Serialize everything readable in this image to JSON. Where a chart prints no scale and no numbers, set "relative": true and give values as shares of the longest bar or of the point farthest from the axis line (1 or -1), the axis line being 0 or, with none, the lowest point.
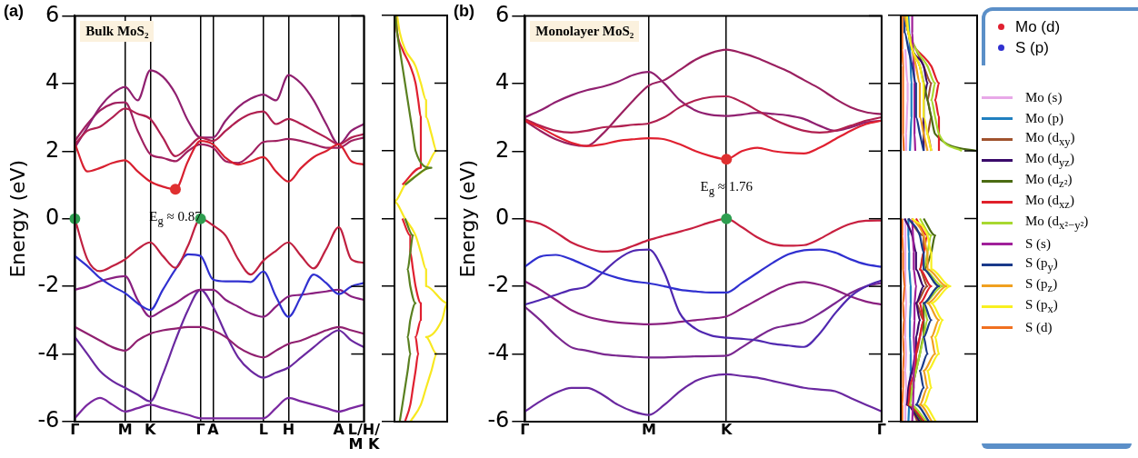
{
  "chart_data": [
    {
      "type": "line",
      "title": "(a)",
      "ylabel": "Energy (eV)",
      "ylim": [
        -6,
        6
      ],
      "yticks": [
        -6,
        -4,
        -2,
        0,
        2,
        4,
        6
      ],
      "grid": "x",
      "categories": [
        "Γ",
        null,
        null,
        null,
        "M",
        null,
        "K",
        null,
        null,
        null,
        "Γ",
        "A",
        null,
        null,
        null,
        "L",
        null,
        "H",
        null,
        null,
        null,
        "A",
        null,
        "L/H/\nM K"
      ],
      "annotations": [
        "Bulk MoS₂",
        {
          "text": "E$_{g}$ ≈ 0.87",
          "y": 0.87
        }
      ],
      "series": [
        {
          "color": "#c02040",
          "values": [
            0,
            -1.2,
            -1.55,
            -1.4,
            -1.2,
            -0.9,
            -0.7,
            -1.1,
            -1.45,
            -0.8,
            0,
            -0.2,
            -0.5,
            -1.2,
            -1.65,
            -1.24,
            -0.95,
            -0.7,
            -1.1,
            -1.47,
            -0.9,
            -0.25,
            -1.2,
            -1.3
          ]
        },
        {
          "color": "#3030d0",
          "values": [
            -1.1,
            -1.4,
            -1.75,
            -2.0,
            -2.2,
            -2.5,
            -2.7,
            -2.1,
            -1.5,
            -1.05,
            -1.1,
            -1.8,
            -1.85,
            -1.85,
            -1.87,
            -1.56,
            -2.3,
            -2.9,
            -2.3,
            -1.65,
            -1.9,
            -2.23,
            -2.0,
            -1.9
          ]
        },
        {
          "color": "#d82030",
          "values": [
            2.22,
            1.4,
            1.5,
            1.65,
            1.73,
            1.4,
            1.1,
            0.95,
            0.87,
            1.7,
            2.3,
            2.2,
            1.8,
            1.6,
            1.7,
            1.82,
            1.4,
            1.1,
            1.5,
            1.82,
            2.0,
            2.2,
            1.7,
            1.6
          ]
        },
        {
          "color": "#b02050",
          "values": [
            2.2,
            2.6,
            2.72,
            3.0,
            3.26,
            3.1,
            2.95,
            2.4,
            1.85,
            2.1,
            2.4,
            2.3,
            2.6,
            2.9,
            3.1,
            3.17,
            2.8,
            2.95,
            2.8,
            2.6,
            2.4,
            2.2,
            2.4,
            2.5
          ]
        },
        {
          "color": "#902070",
          "values": [
            2.1,
            2.7,
            3.3,
            3.7,
            3.9,
            3.5,
            4.39,
            4.2,
            3.7,
            2.9,
            2.4,
            2.4,
            2.9,
            3.3,
            3.55,
            3.67,
            3.5,
            4.25,
            4.0,
            3.5,
            2.8,
            2.2,
            2.6,
            2.8
          ]
        },
        {
          "color": "#a02060",
          "values": [
            2.3,
            2.8,
            3.2,
            3.4,
            3.44,
            2.6,
            1.91,
            1.8,
            1.7,
            2.0,
            2.2,
            2.1,
            1.7,
            1.65,
            1.9,
            2.27,
            2.3,
            2.36,
            2.3,
            2.2,
            2.1,
            2.1,
            2.3,
            2.4
          ]
        },
        {
          "color": "#8a2080",
          "values": [
            -2.1,
            -2.0,
            -1.85,
            -1.75,
            -1.7,
            -2.4,
            -2.9,
            -2.7,
            -2.5,
            -2.25,
            -2.1,
            -2.1,
            -2.4,
            -2.6,
            -2.8,
            -2.9,
            -2.6,
            -2.3,
            -2.25,
            -2.2,
            -2.15,
            -2.1,
            -2.3,
            -2.4
          ]
        },
        {
          "color": "#902070",
          "values": [
            -3.2,
            -3.4,
            -3.6,
            -3.8,
            -3.9,
            -3.6,
            -3.4,
            -3.3,
            -3.25,
            -3.2,
            -3.2,
            -3.3,
            -3.5,
            -3.8,
            -4.0,
            -4.1,
            -3.9,
            -3.7,
            -3.6,
            -3.45,
            -3.3,
            -3.2,
            -3.3,
            -3.4
          ]
        },
        {
          "color": "#6a28a0",
          "values": [
            -3.5,
            -4.0,
            -4.5,
            -4.8,
            -5.0,
            -5.2,
            -5.4,
            -4.6,
            -3.6,
            -2.7,
            -2.1,
            -2.6,
            -3.4,
            -4.1,
            -4.5,
            -4.7,
            -4.55,
            -4.4,
            -4.1,
            -3.8,
            -3.5,
            -3.3,
            -3.6,
            -3.8
          ]
        },
        {
          "color": "#7a28a0",
          "values": [
            -5.9,
            -5.5,
            -5.3,
            -5.5,
            -5.7,
            -5.6,
            -5.5,
            -5.6,
            -5.7,
            -5.8,
            -5.9,
            -5.9,
            -5.9,
            -5.9,
            -5.9,
            -5.9,
            -5.6,
            -5.3,
            -5.4,
            -5.5,
            -5.6,
            -5.7,
            -5.6,
            -5.5
          ]
        },
        {
          "type": "scatter",
          "color": "#2e9e50",
          "values": [
            0,
            null,
            null,
            null,
            null,
            null,
            null,
            null,
            null,
            null,
            0,
            null,
            null,
            null,
            null,
            null,
            null,
            null,
            null,
            null,
            null,
            null,
            null,
            null
          ]
        },
        {
          "type": "scatter",
          "color": "#e03030",
          "values": [
            null,
            null,
            null,
            null,
            null,
            null,
            null,
            null,
            0.87,
            null,
            null,
            null,
            null,
            null,
            null,
            null,
            null,
            null,
            null,
            null,
            null,
            null,
            null,
            null
          ]
        }
      ]
    },
    {
      "type": "line",
      "orientation": "horizontal",
      "relative": true,
      "ylim": [
        -6,
        6
      ],
      "yticks": [
        -6,
        -4,
        -2,
        0,
        2,
        4,
        6
      ],
      "tick_labels": false,
      "series": [
        {
          "color": "#f8e820",
          "x": [
            -6,
            -5.5,
            -5,
            -4.5,
            -4,
            -3.5,
            -3,
            -2.5,
            -2,
            -1.5,
            -1,
            -0.5,
            0,
            0.5,
            1,
            1.5,
            2,
            2.5,
            3,
            3.5,
            4,
            4.5,
            5,
            5.5,
            6
          ],
          "values": [
            0.3,
            0.5,
            0.6,
            0.7,
            0.8,
            0.6,
            0.9,
            1,
            0.6,
            0.6,
            0.5,
            0.4,
            0.2,
            0,
            0.2,
            0.6,
            0.8,
            0.7,
            0.6,
            0.6,
            0.5,
            0.4,
            0.2,
            0.1,
            0.05
          ]
        },
        {
          "color": "#e02030",
          "x": [
            -6,
            -5.5,
            -5,
            -4.5,
            -4,
            -3.5,
            -3,
            -2.5,
            -2,
            -1.5,
            -1,
            -0.5,
            0,
            0.5,
            1,
            1.5,
            2,
            2.5,
            3,
            3.5,
            4,
            4.5,
            5,
            5.5,
            6
          ],
          "values": [
            0.2,
            0.3,
            0.35,
            0.4,
            0.45,
            0.4,
            0.5,
            0.5,
            0.4,
            0.35,
            0.3,
            0.3,
            0.15,
            null,
            0.15,
            0.5,
            0.5,
            0.5,
            0.5,
            0.45,
            0.4,
            0.3,
            0.15,
            0.05,
            0.02
          ]
        },
        {
          "color": "#5a8020",
          "x": [
            -6,
            -5.5,
            -5,
            -4.5,
            -4,
            -3.5,
            -3,
            -2.5,
            -2,
            -1.5,
            -1,
            -0.5,
            0,
            0.5,
            1,
            1.5,
            2,
            2.5,
            3,
            3.5,
            4,
            4.5,
            5,
            5.5,
            6
          ],
          "values": [
            0.1,
            0.15,
            0.2,
            0.25,
            0.3,
            0.25,
            0.3,
            0.4,
            0.3,
            0.25,
            0.3,
            0.35,
            0.2,
            null,
            0.2,
            0.7,
            0.4,
            0.35,
            0.3,
            0.25,
            0.2,
            0.15,
            0.1,
            0.05,
            0.02
          ]
        }
      ]
    },
    {
      "type": "line",
      "title": "(b)",
      "ylabel": "Energy (eV)",
      "ylim": [
        -6,
        6
      ],
      "yticks": [
        -6,
        -4,
        -2,
        0,
        2,
        4,
        6
      ],
      "grid": "x",
      "legend": "right",
      "categories": [
        "Γ",
        null,
        null,
        null,
        null,
        null,
        null,
        null,
        "M",
        null,
        null,
        null,
        null,
        "K",
        null,
        null,
        null,
        null,
        null,
        null,
        null,
        null,
        null,
        "Γ"
      ],
      "annotations": [
        "Monolayer MoS₂",
        {
          "text": "E$_{g}$ ≈ 1.76",
          "x": "K",
          "y": 1.76
        }
      ],
      "series": [
        {
          "name": "Mo (d)",
          "color": "#e02030",
          "values": [
            2.9,
            2.7,
            2.45,
            2.25,
            2.15,
            2.2,
            2.3,
            2.35,
            2.38,
            2.35,
            2.2,
            2.0,
            1.85,
            1.76,
            2.0,
            2.1,
            2.0,
            1.95,
            1.93,
            2.1,
            2.35,
            2.6,
            2.8,
            2.9
          ]
        },
        {
          "color": "#b02050",
          "values": [
            2.95,
            2.75,
            2.6,
            2.55,
            2.6,
            2.7,
            2.73,
            2.78,
            2.82,
            3.0,
            3.3,
            3.5,
            3.6,
            3.62,
            3.45,
            3.2,
            2.95,
            2.75,
            2.6,
            2.55,
            2.6,
            2.75,
            2.9,
            3.0
          ]
        },
        {
          "color": "#902070",
          "values": [
            3.0,
            3.2,
            3.45,
            3.65,
            3.8,
            3.9,
            4.05,
            4.25,
            4.34,
            4.0,
            3.5,
            3.2,
            3.07,
            3.04,
            3.08,
            3.13,
            3.1,
            3.05,
            2.95,
            2.75,
            2.6,
            2.7,
            2.85,
            2.9
          ]
        },
        {
          "color": "#9a2060",
          "values": [
            2.9,
            2.6,
            2.35,
            2.2,
            2.15,
            2.5,
            3.0,
            3.5,
            3.94,
            4.1,
            4.4,
            4.7,
            4.9,
            5.0,
            4.9,
            4.75,
            4.55,
            4.35,
            4.1,
            3.85,
            3.55,
            3.3,
            3.15,
            3.09
          ]
        },
        {
          "color": "#c82040",
          "values": [
            -0.05,
            -0.15,
            -0.4,
            -0.7,
            -0.88,
            -0.97,
            -0.95,
            -0.8,
            -0.63,
            -0.5,
            -0.38,
            -0.25,
            -0.1,
            0,
            -0.25,
            -0.55,
            -0.75,
            -0.8,
            -0.78,
            -0.6,
            -0.35,
            -0.15,
            -0.06,
            -0.05
          ]
        },
        {
          "name": "S (p)",
          "color": "#3030d0",
          "values": [
            -1.42,
            -1.12,
            -1.07,
            -1.2,
            -1.4,
            -1.6,
            -1.75,
            -1.85,
            -1.91,
            -2.0,
            -2.1,
            -2.15,
            -2.18,
            -2.18,
            -1.9,
            -1.6,
            -1.3,
            -1.05,
            -0.93,
            -0.91,
            -1.0,
            -1.2,
            -1.35,
            -1.42
          ]
        },
        {
          "color": "#5028b0",
          "values": [
            -2.54,
            -2.4,
            -2.25,
            -2.1,
            -2.0,
            -1.6,
            -1.2,
            -0.95,
            -0.91,
            -1.6,
            -2.8,
            -3.25,
            -3.45,
            -3.52,
            -3.55,
            -3.6,
            -3.7,
            -3.75,
            -3.79,
            -3.4,
            -2.8,
            -2.3,
            -2.0,
            -1.82
          ]
        },
        {
          "color": "#8a2080",
          "values": [
            -1.85,
            -2.1,
            -2.4,
            -2.7,
            -2.89,
            -3.0,
            -3.07,
            -3.1,
            -3.12,
            -3.1,
            -3.05,
            -3.0,
            -2.95,
            -2.89,
            -2.65,
            -2.4,
            -2.15,
            -1.95,
            -1.87,
            -1.95,
            -2.1,
            -2.3,
            -2.45,
            -2.54
          ]
        },
        {
          "color": "#7a2890",
          "values": [
            -2.6,
            -3.0,
            -3.45,
            -3.8,
            -3.9,
            -4.0,
            -4.05,
            -4.08,
            -4.1,
            -4.1,
            -4.08,
            -4.07,
            -4.06,
            -4.05,
            -3.8,
            -3.5,
            -3.25,
            -3.15,
            -3.05,
            -2.8,
            -2.5,
            -2.2,
            -2.0,
            -1.9
          ]
        },
        {
          "color": "#6a28a0",
          "values": [
            -5.7,
            -5.4,
            -5.15,
            -5.0,
            -5.0,
            -5.2,
            -5.5,
            -5.7,
            -5.8,
            -5.5,
            -5.1,
            -4.8,
            -4.65,
            -4.6,
            -4.65,
            -4.7,
            -4.8,
            -4.9,
            -5.0,
            -5.05,
            -5.1,
            -5.3,
            -5.5,
            -5.7
          ]
        },
        {
          "type": "scatter",
          "color": "#2e9e50",
          "values": [
            null,
            null,
            null,
            null,
            null,
            null,
            null,
            null,
            null,
            null,
            null,
            null,
            null,
            0,
            null,
            null,
            null,
            null,
            null,
            null,
            null,
            null,
            null,
            null
          ]
        },
        {
          "type": "scatter",
          "color": "#e03030",
          "values": [
            null,
            null,
            null,
            null,
            null,
            null,
            null,
            null,
            null,
            null,
            null,
            null,
            null,
            1.76,
            null,
            null,
            null,
            null,
            null,
            null,
            null,
            null,
            null,
            null
          ]
        }
      ]
    },
    {
      "type": "line",
      "orientation": "horizontal",
      "relative": true,
      "ylim": [
        -6,
        6
      ],
      "yticks": [
        -6,
        -4,
        -2,
        0,
        2,
        4,
        6
      ],
      "tick_labels": false,
      "legend": "right",
      "series": [
        {
          "name": "Mo (s)",
          "color": "#e8a8e8",
          "x": [
            -6,
            -5.5,
            -5,
            -4.5,
            -4,
            -3.5,
            -3,
            -2.5,
            -2,
            -1.5,
            -1,
            -0.5,
            0,
            0.5,
            1,
            1.5,
            2,
            2.5,
            3,
            3.5,
            4,
            4.5,
            5
          ],
          "values": [
            0.06,
            0.06,
            0.07,
            0.06,
            0.07,
            0.06,
            0.06,
            0.07,
            0.06,
            0.06,
            0.06,
            0.06,
            0.06,
            null,
            null,
            null,
            0.07,
            0.07,
            0.08,
            0.09,
            0.09,
            0.07,
            0.06
          ]
        },
        {
          "name": "Mo (p)",
          "color": "#2080c0",
          "x": [
            -6,
            -5.5,
            -5,
            -4.5,
            -4,
            -3.5,
            -3,
            -2.5,
            -2,
            -1.5,
            -1,
            -0.5,
            0,
            0.5,
            1,
            1.5,
            2,
            2.5,
            3,
            3.5,
            4,
            4.5,
            5,
            5.5,
            6
          ],
          "values": [
            0.1,
            0.11,
            0.12,
            0.13,
            0.13,
            0.12,
            0.12,
            0.13,
            0.13,
            0.11,
            0.11,
            0.1,
            0.1,
            null,
            null,
            null,
            0.12,
            0.13,
            0.14,
            0.14,
            0.14,
            0.13,
            0.12,
            0.11,
            0.1
          ]
        },
        {
          "name": "Mo (d$_{xy}$)",
          "color": "#a0522d",
          "x": [
            -6,
            -5.5,
            -5,
            -4.5,
            -4,
            -3.5,
            -3,
            -2.5,
            -2,
            -1.5,
            -1,
            -0.5,
            0,
            0.5,
            1,
            1.5,
            2,
            2.5,
            3,
            3.5,
            4,
            4.5,
            5,
            5.5,
            6
          ],
          "values": [
            0.22,
            0.1,
            0.15,
            0.2,
            0.2,
            0.25,
            0.3,
            0.2,
            0.35,
            0.25,
            0.3,
            0.3,
            0.1,
            null,
            null,
            null,
            0.4,
            0.35,
            0.4,
            0.35,
            0.4,
            0.3,
            0.2,
            0.1,
            0.05
          ]
        },
        {
          "name": "Mo (d$_{yz}$)",
          "color": "#3a0a6a",
          "x": [
            -6,
            -5.5,
            -5,
            -4.5,
            -4,
            -3.5,
            -3,
            -2.5,
            -2,
            -1.5,
            -1,
            -0.5,
            0,
            0.5,
            1,
            1.5,
            2,
            2.5,
            3,
            3.5,
            4,
            4.5,
            5,
            5.5,
            6
          ],
          "values": [
            0.25,
            0.08,
            0.1,
            0.15,
            0.2,
            0.2,
            0.25,
            0.2,
            0.3,
            0.2,
            0.2,
            0.15,
            0.05,
            null,
            null,
            null,
            0.3,
            0.3,
            0.3,
            0.3,
            0.35,
            0.3,
            0.15,
            0.1,
            0.05
          ]
        },
        {
          "name": "Mo (d$_{z²}$)",
          "color": "#4b6b12",
          "x": [
            -6,
            -5.5,
            -5,
            -4.5,
            -4,
            -3.5,
            -3,
            -2.5,
            -2,
            -1.5,
            -1,
            -0.5,
            0,
            0.5,
            1,
            1.5,
            2,
            2.5,
            3,
            3.5,
            4,
            4.5,
            5,
            5.5,
            6
          ],
          "values": [
            0.28,
            0.1,
            0.15,
            0.2,
            0.25,
            0.3,
            0.3,
            0.3,
            0.5,
            0.3,
            0.4,
            0.45,
            0.3,
            null,
            null,
            null,
            1,
            0.45,
            0.4,
            0.35,
            0.3,
            0.25,
            0.15,
            0.1,
            0.05
          ]
        },
        {
          "name": "Mo (d$_{xz}$)",
          "color": "#e0202a",
          "x": [
            -6,
            -5.5,
            -5,
            -4.5,
            -4,
            -3.5,
            -3,
            -2.5,
            -2,
            -1.5,
            -1,
            -0.5,
            0,
            0.5,
            1,
            1.5,
            2,
            2.5,
            3,
            3.5,
            4,
            4.5,
            5
          ],
          "values": [
            0.31,
            0.1,
            0.12,
            0.18,
            0.2,
            0.25,
            0.3,
            0.25,
            0.4,
            0.25,
            0.3,
            0.35,
            0.2,
            null,
            null,
            null,
            0.5,
            0.5,
            0.5,
            0.45,
            0.5,
            0.4,
            0.2
          ]
        },
        {
          "name": "Mo (d$_{x²−y²}$)",
          "color": "#a8d830",
          "x": [
            -6,
            -5.5,
            -5,
            -4.5,
            -4,
            -3.5,
            -3,
            -2.5,
            -2,
            -1.5,
            -1,
            -0.5,
            0,
            0.5,
            1,
            1.5,
            2,
            2.5,
            3,
            3.5,
            4,
            4.5,
            5,
            5.5,
            6
          ],
          "values": [
            0.34,
            0.12,
            0.15,
            0.2,
            0.25,
            0.3,
            0.35,
            0.3,
            0.55,
            0.3,
            0.35,
            0.4,
            0.25,
            null,
            null,
            null,
            0.8,
            0.5,
            0.45,
            0.4,
            0.45,
            0.35,
            0.2,
            0.1,
            0.05
          ]
        },
        {
          "name": "S (s)",
          "color": "#a0209a",
          "x": [
            -6,
            -5.5,
            -5,
            -4.5,
            -4,
            -3.5,
            -3,
            -2.5,
            -2,
            -1.5,
            -1,
            -0.5,
            0,
            0.5,
            1,
            1.5,
            2,
            2.5,
            3,
            3.5,
            4,
            4.5,
            5,
            5.5,
            6
          ],
          "values": [
            0.15,
            0.16,
            0.17,
            0.17,
            0.18,
            0.17,
            0.18,
            0.18,
            0.2,
            0.17,
            0.17,
            0.16,
            0.15,
            null,
            null,
            null,
            0.19,
            0.18,
            0.18,
            0.18,
            0.18,
            0.17,
            0.16,
            0.15,
            0.15
          ]
        },
        {
          "name": "S (p$_{y}$)",
          "color": "#1a3a8a",
          "x": [
            -6,
            -5.5,
            -5,
            -4.5,
            -4,
            -3.5,
            -3,
            -2.5,
            -2,
            -1.5,
            -1,
            -0.5,
            0,
            0.5,
            1,
            1.5,
            2,
            2.5,
            3,
            3.5,
            4,
            4.5,
            5,
            5.5,
            6
          ],
          "values": [
            0.37,
            0.2,
            0.3,
            0.25,
            0.35,
            0.3,
            0.4,
            0.3,
            0.5,
            0.3,
            0.3,
            0.25,
            0.1,
            null,
            null,
            null,
            0.3,
            0.25,
            0.2,
            0.2,
            0.2,
            0.15,
            0.1,
            0.05,
            0.05
          ]
        },
        {
          "name": "S (p$_{z}$)",
          "color": "#f0a020",
          "x": [
            -6,
            -5.5,
            -5,
            -4.5,
            -4,
            -3.5,
            -3,
            -2.5,
            -2,
            -1.5,
            -1,
            -0.5,
            0,
            0.5,
            1,
            1.5,
            2,
            2.5,
            3,
            3.5,
            4,
            4.5,
            5,
            5.5,
            6
          ],
          "values": [
            0.41,
            0.25,
            0.35,
            0.3,
            0.45,
            0.4,
            0.5,
            0.35,
            0.6,
            0.35,
            0.35,
            0.3,
            0.15,
            null,
            null,
            null,
            0.35,
            0.3,
            0.25,
            0.25,
            0.25,
            0.2,
            0.15,
            0.1,
            0.05
          ]
        },
        {
          "name": "S (p$_{x}$)",
          "color": "#f8f020",
          "x": [
            -6,
            -5.5,
            -5,
            -4.5,
            -4,
            -3.5,
            -3,
            -2.5,
            -2,
            -1.5,
            -1,
            -0.5,
            0,
            0.5,
            1,
            1.5,
            2,
            2.5,
            3,
            3.5,
            4,
            4.5,
            5,
            5.5,
            6
          ],
          "values": [
            0.46,
            0.3,
            0.4,
            0.35,
            0.5,
            0.45,
            0.55,
            0.4,
            0.65,
            0.4,
            0.4,
            0.35,
            0.15,
            null,
            null,
            null,
            0.4,
            0.35,
            0.3,
            0.3,
            0.3,
            0.25,
            0.15,
            0.1,
            0.08
          ]
        },
        {
          "name": "S (d)",
          "color": "#f07020",
          "x": [
            -6,
            -5.5,
            -5,
            -4.5,
            -4,
            -3.5,
            -3,
            -2.5,
            -2,
            -1.5,
            -1,
            -0.5,
            0,
            0.5,
            1,
            1.5,
            2,
            2.5,
            3,
            3.5,
            4,
            4.5,
            5,
            5.5,
            6
          ],
          "values": [
            0.02,
            0.02,
            0.03,
            0.03,
            0.04,
            0.03,
            0.04,
            0.03,
            0.05,
            0.03,
            0.03,
            0.02,
            0.02,
            null,
            null,
            null,
            0.04,
            0.03,
            0.03,
            0.03,
            0.03,
            0.03,
            0.02,
            0.02,
            0.02
          ]
        }
      ]
    }
  ]
}
